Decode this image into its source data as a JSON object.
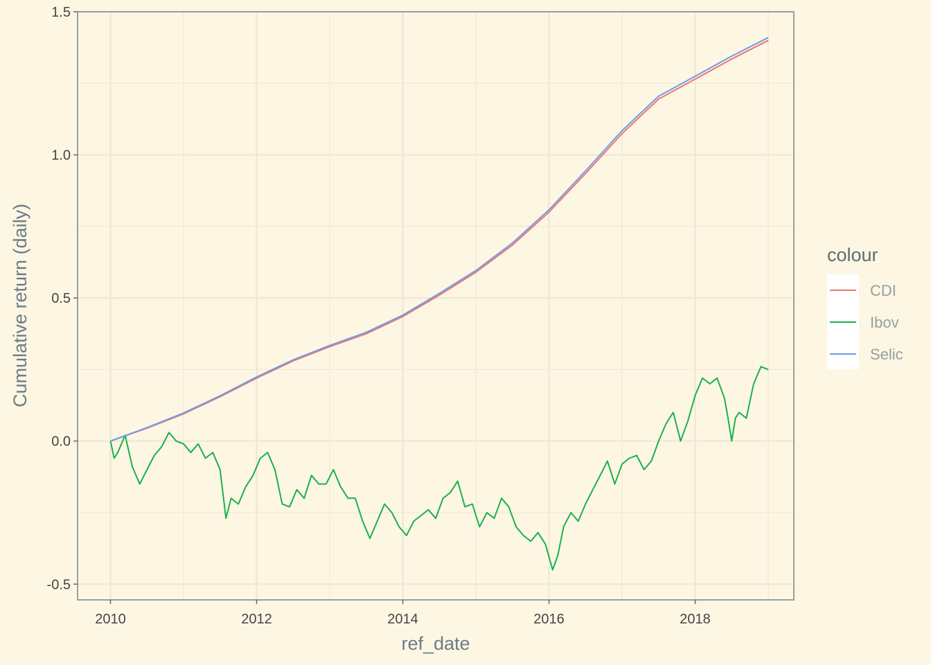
{
  "chart_data": {
    "type": "line",
    "title": "",
    "xlabel": "ref_date",
    "ylabel": "Cumulative return (daily)",
    "xlim": [
      2009.55,
      2019.35
    ],
    "ylim": [
      -0.555,
      1.5
    ],
    "x_ticks": [
      2010,
      2012,
      2014,
      2016,
      2018
    ],
    "x_tick_labels": [
      "2010",
      "2012",
      "2014",
      "2016",
      "2018"
    ],
    "y_ticks": [
      -0.5,
      0.0,
      0.5,
      1.0,
      1.5
    ],
    "y_tick_labels": [
      "-0.5",
      "0.0",
      "0.5",
      "1.0",
      "1.5"
    ],
    "grid": true,
    "legend": {
      "title": "colour",
      "position": "right",
      "entries": [
        "CDI",
        "Ibov",
        "Selic"
      ]
    },
    "colors": {
      "background": "#fdf6e3",
      "grid": "#eee8d5",
      "axis": "#93a1a1",
      "CDI": "#e8786e",
      "Ibov": "#19b14d",
      "Selic": "#6f9be8"
    },
    "series": [
      {
        "name": "CDI",
        "x": [
          2010.0,
          2010.5,
          2011.0,
          2011.5,
          2012.0,
          2012.5,
          2013.0,
          2013.5,
          2014.0,
          2014.5,
          2015.0,
          2015.5,
          2016.0,
          2016.5,
          2017.0,
          2017.5,
          2018.0,
          2018.5,
          2019.0
        ],
        "values": [
          0.0,
          0.045,
          0.095,
          0.155,
          0.22,
          0.28,
          0.33,
          0.375,
          0.435,
          0.51,
          0.59,
          0.685,
          0.8,
          0.935,
          1.075,
          1.195,
          1.265,
          1.335,
          1.4
        ]
      },
      {
        "name": "Ibov",
        "x": [
          2010.0,
          2010.05,
          2010.1,
          2010.2,
          2010.3,
          2010.4,
          2010.5,
          2010.6,
          2010.7,
          2010.8,
          2010.9,
          2011.0,
          2011.1,
          2011.2,
          2011.3,
          2011.4,
          2011.5,
          2011.58,
          2011.65,
          2011.75,
          2011.85,
          2011.95,
          2012.05,
          2012.15,
          2012.25,
          2012.35,
          2012.45,
          2012.55,
          2012.65,
          2012.75,
          2012.85,
          2012.95,
          2013.05,
          2013.15,
          2013.25,
          2013.35,
          2013.45,
          2013.55,
          2013.65,
          2013.75,
          2013.85,
          2013.95,
          2014.05,
          2014.15,
          2014.25,
          2014.35,
          2014.45,
          2014.55,
          2014.65,
          2014.75,
          2014.85,
          2014.95,
          2015.05,
          2015.15,
          2015.25,
          2015.35,
          2015.45,
          2015.55,
          2015.65,
          2015.75,
          2015.85,
          2015.95,
          2016.05,
          2016.12,
          2016.2,
          2016.3,
          2016.4,
          2016.5,
          2016.6,
          2016.7,
          2016.8,
          2016.9,
          2017.0,
          2017.1,
          2017.2,
          2017.3,
          2017.4,
          2017.5,
          2017.6,
          2017.7,
          2017.8,
          2017.9,
          2018.0,
          2018.1,
          2018.2,
          2018.3,
          2018.4,
          2018.45,
          2018.5,
          2018.55,
          2018.6,
          2018.7,
          2018.8,
          2018.9,
          2019.0
        ],
        "values": [
          0.0,
          -0.06,
          -0.04,
          0.02,
          -0.09,
          -0.15,
          -0.1,
          -0.05,
          -0.02,
          0.03,
          0.0,
          -0.01,
          -0.04,
          -0.01,
          -0.06,
          -0.04,
          -0.1,
          -0.27,
          -0.2,
          -0.22,
          -0.16,
          -0.12,
          -0.06,
          -0.04,
          -0.1,
          -0.22,
          -0.23,
          -0.17,
          -0.2,
          -0.12,
          -0.15,
          -0.15,
          -0.1,
          -0.16,
          -0.2,
          -0.2,
          -0.28,
          -0.34,
          -0.28,
          -0.22,
          -0.25,
          -0.3,
          -0.33,
          -0.28,
          -0.26,
          -0.24,
          -0.27,
          -0.2,
          -0.18,
          -0.14,
          -0.23,
          -0.22,
          -0.3,
          -0.25,
          -0.27,
          -0.2,
          -0.23,
          -0.3,
          -0.33,
          -0.35,
          -0.32,
          -0.36,
          -0.45,
          -0.4,
          -0.3,
          -0.25,
          -0.28,
          -0.22,
          -0.17,
          -0.12,
          -0.07,
          -0.15,
          -0.08,
          -0.06,
          -0.05,
          -0.1,
          -0.07,
          0.0,
          0.06,
          0.1,
          0.0,
          0.07,
          0.16,
          0.22,
          0.2,
          0.22,
          0.15,
          0.08,
          0.0,
          0.08,
          0.1,
          0.08,
          0.2,
          0.26,
          0.25
        ]
      },
      {
        "name": "Selic",
        "x": [
          2010.0,
          2010.5,
          2011.0,
          2011.5,
          2012.0,
          2012.5,
          2013.0,
          2013.5,
          2014.0,
          2014.5,
          2015.0,
          2015.5,
          2016.0,
          2016.5,
          2017.0,
          2017.5,
          2018.0,
          2018.5,
          2019.0
        ],
        "values": [
          0.0,
          0.047,
          0.098,
          0.158,
          0.224,
          0.284,
          0.334,
          0.38,
          0.44,
          0.516,
          0.596,
          0.692,
          0.808,
          0.944,
          1.085,
          1.205,
          1.275,
          1.345,
          1.41
        ]
      }
    ]
  }
}
